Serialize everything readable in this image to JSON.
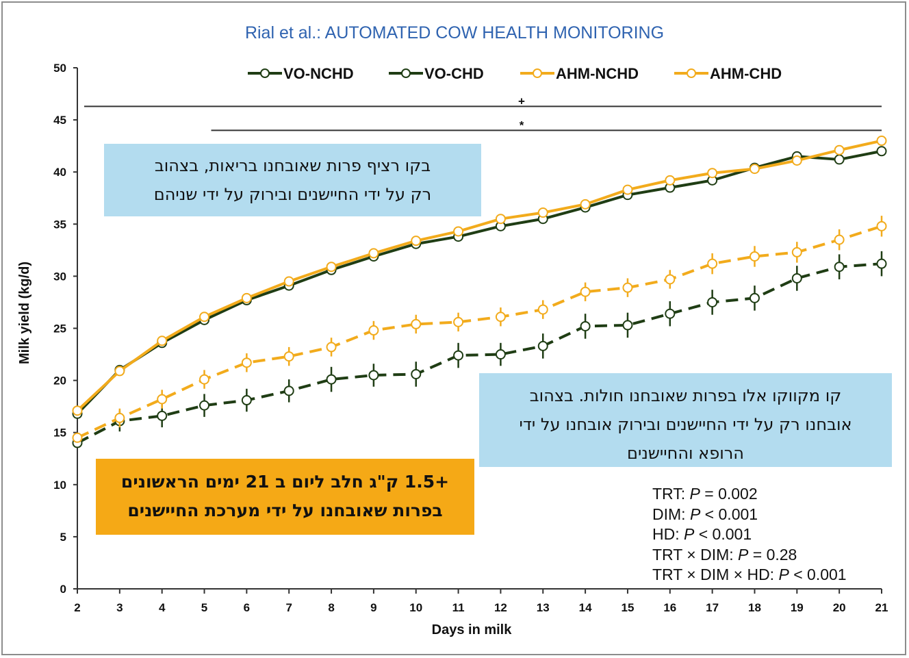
{
  "header": "Rial et al.: AUTOMATED COW HEALTH MONITORING",
  "chart_data": {
    "type": "line",
    "xlabel": "Days in milk",
    "ylabel": "Milk yield (kg/d)",
    "xlim": [
      2,
      21
    ],
    "ylim": [
      0,
      50
    ],
    "x": [
      2,
      3,
      4,
      5,
      6,
      7,
      8,
      9,
      10,
      11,
      12,
      13,
      14,
      15,
      16,
      17,
      18,
      19,
      20,
      21
    ],
    "xticks": [
      "2",
      "3",
      "4",
      "5",
      "6",
      "7",
      "8",
      "9",
      "10",
      "11",
      "12",
      "13",
      "14",
      "15",
      "16",
      "17",
      "18",
      "19",
      "20",
      "21"
    ],
    "yticks": [
      "0",
      "5",
      "10",
      "15",
      "20",
      "25",
      "30",
      "35",
      "40",
      "45",
      "50"
    ],
    "grid": false,
    "legend_position": "top",
    "significance_marks": [
      {
        "symbol": "+",
        "x_from": 2,
        "x_to": 21,
        "y": 46.3
      },
      {
        "symbol": "*",
        "x_from": 5,
        "x_to": 21,
        "y": 44.0
      }
    ],
    "series": [
      {
        "name": "VO-NCHD",
        "color": "#1f3d14",
        "dashed": false,
        "values": [
          16.8,
          21.0,
          23.6,
          25.8,
          27.7,
          29.1,
          30.6,
          31.9,
          33.1,
          33.8,
          34.8,
          35.5,
          36.6,
          37.8,
          38.5,
          39.2,
          40.4,
          41.5,
          41.2,
          42.0
        ],
        "errors": [
          0.4,
          0.4,
          0.4,
          0.4,
          0.4,
          0.4,
          0.4,
          0.4,
          0.4,
          0.4,
          0.4,
          0.4,
          0.4,
          0.4,
          0.4,
          0.4,
          0.4,
          0.4,
          0.4,
          0.4
        ]
      },
      {
        "name": "VO-CHD",
        "color": "#1f3d14",
        "dashed": true,
        "values": [
          14.0,
          16.1,
          16.6,
          17.6,
          18.1,
          19.0,
          20.1,
          20.5,
          20.6,
          22.4,
          22.5,
          23.3,
          25.2,
          25.3,
          26.4,
          27.5,
          27.9,
          29.8,
          30.9,
          31.2
        ],
        "errors": [
          0.4,
          1.0,
          1.1,
          1.1,
          1.1,
          1.1,
          1.2,
          1.1,
          1.2,
          1.2,
          1.1,
          1.2,
          1.2,
          1.2,
          1.2,
          1.2,
          1.2,
          1.2,
          1.2,
          1.2
        ]
      },
      {
        "name": "AHM-NCHD",
        "color": "#f2ab1c",
        "dashed": false,
        "values": [
          17.1,
          20.9,
          23.8,
          26.1,
          27.9,
          29.5,
          30.9,
          32.2,
          33.4,
          34.3,
          35.5,
          36.1,
          36.9,
          38.3,
          39.2,
          39.9,
          40.3,
          41.1,
          42.1,
          43.0
        ],
        "errors": [
          0.4,
          0.4,
          0.4,
          0.4,
          0.4,
          0.4,
          0.4,
          0.4,
          0.4,
          0.4,
          0.4,
          0.4,
          0.4,
          0.4,
          0.4,
          0.4,
          0.4,
          0.4,
          0.4,
          0.4
        ]
      },
      {
        "name": "AHM-CHD",
        "color": "#f2ab1c",
        "dashed": true,
        "values": [
          14.5,
          16.4,
          18.2,
          20.1,
          21.7,
          22.3,
          23.2,
          24.8,
          25.4,
          25.6,
          26.1,
          26.8,
          28.5,
          28.9,
          29.7,
          31.2,
          31.9,
          32.3,
          33.5,
          34.8
        ],
        "errors": [
          0.4,
          0.9,
          0.9,
          0.9,
          0.9,
          0.9,
          0.9,
          0.9,
          0.9,
          0.9,
          0.9,
          0.9,
          0.9,
          0.9,
          0.9,
          1.0,
          1.0,
          1.0,
          1.0,
          1.0
        ]
      }
    ]
  },
  "notes": {
    "healthy_line1": "בקו רציף פרות שאובחנו בריאות, בצהוב",
    "healthy_line2": "רק על ידי החיישנים ובירוק על ידי שניהם",
    "sick_line1": "קו מקווקו אלו בפרות שאובחנו חולות. בצהוב",
    "sick_line2": "אובחנו רק על ידי החיישנים ובירוק אובחנו על ידי",
    "sick_line3": "הרופא והחיישנים",
    "gain_line1": "+1.5 ק\"ג חלב ליום ב 21 ימים הראשונים",
    "gain_line2": "בפרות שאובחנו על ידי מערכת החיישנים"
  },
  "stats": [
    {
      "label": "TRT: ",
      "p": "P",
      "rest": " = 0.002"
    },
    {
      "label": "DIM: ",
      "p": "P",
      "rest": " < 0.001"
    },
    {
      "label": "HD: ",
      "p": "P",
      "rest": " < 0.001"
    },
    {
      "label": "TRT × DIM: ",
      "p": "P",
      "rest": " = 0.28"
    },
    {
      "label": "TRT × DIM × HD: ",
      "p": "P",
      "rest": " < 0.001"
    }
  ]
}
